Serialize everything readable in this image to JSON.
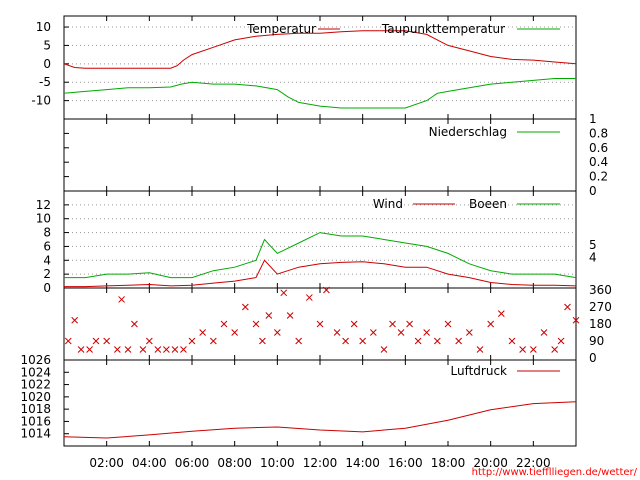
{
  "credit": "http://www.tiefflliegen.de/wetter/",
  "time_axis": {
    "labels": [
      "02:00",
      "04:00",
      "06:00",
      "08:00",
      "10:00",
      "12:00",
      "14:00",
      "16:00",
      "18:00",
      "20:00",
      "22:00"
    ],
    "range_hours": [
      0,
      24
    ]
  },
  "colors": {
    "temperature": "#cc0000",
    "dewpoint": "#00aa00",
    "rain": "#00aa00",
    "wind": "#cc0000",
    "gusts": "#00aa00",
    "direction": "#cc0000",
    "pressure": "#cc0000"
  },
  "chart_data": [
    {
      "type": "line",
      "title": "",
      "xlabel": "",
      "ylabel": "",
      "ylim": [
        -15,
        13
      ],
      "y_ticks": [
        10,
        5,
        0,
        -5,
        -10
      ],
      "y_tick_labels": [
        "10",
        "5",
        "0",
        "-5",
        "-10"
      ],
      "grid": true,
      "legend": "top",
      "series": [
        {
          "name": "Temperatur",
          "x": [
            0,
            0.5,
            1,
            2,
            3,
            4,
            5,
            5.3,
            5.6,
            6,
            7,
            8,
            9,
            10,
            11,
            12,
            13,
            14,
            15,
            16,
            17,
            17.5,
            18,
            19,
            20,
            21,
            22,
            23,
            24
          ],
          "y": [
            0,
            -1,
            -1.2,
            -1.2,
            -1.2,
            -1.2,
            -1.2,
            -0.5,
            1,
            2.5,
            4.5,
            6.5,
            7.5,
            8,
            8.3,
            8.3,
            8.7,
            9,
            9,
            9,
            8,
            6.5,
            5,
            3.5,
            2,
            1.2,
            1,
            0.5,
            0
          ]
        },
        {
          "name": "Taupunkttemperatur",
          "x": [
            0,
            1,
            2,
            3,
            4,
            5,
            5.5,
            6,
            7,
            8,
            9,
            10,
            10.5,
            11,
            12,
            13,
            14,
            15,
            16,
            17,
            17.5,
            18,
            19,
            20,
            21,
            22,
            23,
            24
          ],
          "y": [
            -8,
            -7.5,
            -7,
            -6.5,
            -6.5,
            -6.3,
            -5.5,
            -5,
            -5.5,
            -5.5,
            -6,
            -7,
            -9,
            -10.5,
            -11.5,
            -12,
            -12,
            -12,
            -12,
            -10,
            -8,
            -7.5,
            -6.5,
            -5.5,
            -5,
            -4.5,
            -4,
            -4
          ]
        }
      ]
    },
    {
      "type": "line",
      "title": "",
      "xlabel": "",
      "ylabel": "",
      "ylim": [
        0,
        1
      ],
      "y_ticks": [
        0,
        0.2,
        0.4,
        0.6,
        0.8,
        1
      ],
      "y_tick_labels": [
        "0",
        "0.2",
        "0.4",
        "0.6",
        "0.8",
        "1"
      ],
      "y_axis_side": "right",
      "legend": "top-right",
      "series": [
        {
          "name": "Niederschlag",
          "x": [
            0,
            24
          ],
          "y": [
            0,
            0
          ]
        }
      ]
    },
    {
      "type": "line",
      "title": "",
      "xlabel": "",
      "ylabel": "",
      "ylim": [
        0,
        14
      ],
      "y_ticks": [
        12,
        10,
        8,
        6,
        4,
        2,
        0
      ],
      "y_tick_labels": [
        "12",
        "10",
        "8",
        "6",
        "4",
        "2",
        "0"
      ],
      "y2_ticks": [
        5,
        4
      ],
      "y2_tick_labels": [
        "5",
        "4"
      ],
      "y2_tick_positions": [
        6.2,
        4.4
      ],
      "grid": true,
      "legend": "top",
      "series": [
        {
          "name": "Wind",
          "x": [
            0,
            1,
            2,
            3,
            4,
            5,
            6,
            7,
            8,
            9,
            9.4,
            10,
            11,
            12,
            13,
            14,
            15,
            16,
            17,
            18,
            19,
            20,
            21,
            22,
            23,
            24
          ],
          "y": [
            0.2,
            0.2,
            0.3,
            0.4,
            0.5,
            0.3,
            0.4,
            0.7,
            1,
            1.5,
            4,
            2,
            3,
            3.5,
            3.7,
            3.8,
            3.5,
            3,
            3,
            2,
            1.5,
            0.8,
            0.5,
            0.4,
            0.4,
            0.3
          ]
        },
        {
          "name": "Boeen",
          "x": [
            0,
            1,
            2,
            3,
            4,
            5,
            6,
            7,
            8,
            9,
            9.4,
            10,
            11,
            12,
            13,
            14,
            15,
            16,
            17,
            18,
            19,
            20,
            21,
            22,
            23,
            24
          ],
          "y": [
            1.5,
            1.5,
            2,
            2,
            2.2,
            1.5,
            1.5,
            2.5,
            3,
            4,
            7,
            5,
            6.5,
            8,
            7.5,
            7.5,
            7,
            6.5,
            6,
            5,
            3.5,
            2.5,
            2,
            2,
            2,
            1.5
          ]
        }
      ]
    },
    {
      "type": "scatter",
      "title": "",
      "xlabel": "",
      "ylabel": "",
      "ylim": [
        0,
        360
      ],
      "y2_ticks": [
        360,
        270,
        180,
        90,
        0
      ],
      "y2_tick_labels": [
        "360",
        "270",
        "180",
        "90",
        "0"
      ],
      "series": [
        {
          "name": "",
          "x": [
            0.2,
            0.5,
            0.8,
            1.2,
            1.5,
            2,
            2.5,
            2.7,
            3,
            3.3,
            3.7,
            4,
            4.4,
            4.8,
            5.2,
            5.6,
            6,
            6.5,
            7,
            7.5,
            8,
            8.5,
            9,
            9.3,
            9.6,
            10,
            10.3,
            10.6,
            11,
            11.5,
            12,
            12.3,
            12.8,
            13.2,
            13.6,
            14,
            14.5,
            15,
            15.4,
            15.8,
            16.2,
            16.6,
            17,
            17.5,
            18,
            18.5,
            19,
            19.5,
            20,
            20.5,
            21,
            21.5,
            22,
            22.5,
            23,
            23.3,
            23.6,
            24
          ],
          "y": [
            90,
            200,
            45,
            45,
            90,
            90,
            45,
            310,
            45,
            180,
            45,
            90,
            45,
            45,
            45,
            45,
            90,
            135,
            90,
            180,
            135,
            270,
            180,
            90,
            225,
            135,
            345,
            225,
            90,
            320,
            180,
            360,
            135,
            90,
            180,
            90,
            135,
            45,
            180,
            135,
            180,
            90,
            135,
            90,
            180,
            90,
            135,
            45,
            180,
            235,
            90,
            45,
            45,
            135,
            45,
            90,
            270,
            200
          ]
        }
      ]
    },
    {
      "type": "line",
      "title": "",
      "xlabel": "",
      "ylabel": "",
      "ylim": [
        1012,
        1026
      ],
      "y_ticks": [
        1026,
        1024,
        1022,
        1020,
        1018,
        1016,
        1014
      ],
      "y_tick_labels": [
        "1026",
        "1024",
        "1022",
        "1020",
        "1018",
        "1016",
        "1014"
      ],
      "legend": "top-right",
      "series": [
        {
          "name": "Luftdruck",
          "x": [
            0,
            2,
            4,
            6,
            8,
            10,
            12,
            14,
            16,
            18,
            20,
            22,
            24
          ],
          "y": [
            1013.5,
            1013.3,
            1013.8,
            1014.4,
            1014.9,
            1015.1,
            1014.6,
            1014.3,
            1014.9,
            1016.2,
            1017.9,
            1018.9,
            1019.2
          ]
        }
      ]
    }
  ]
}
